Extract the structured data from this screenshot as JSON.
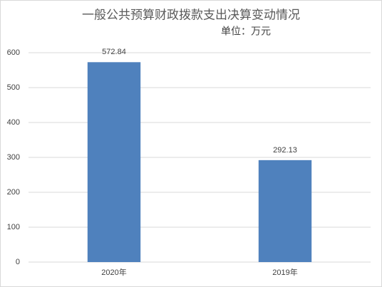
{
  "chart_data": {
    "type": "bar",
    "title": "一般公共预算财政拨款支出决算变动情况",
    "subtitle": "单位：万元",
    "categories": [
      "2020年",
      "2019年"
    ],
    "values": [
      572.84,
      292.13
    ],
    "color": "#4f81bd",
    "ylim": [
      0,
      600
    ],
    "yticks": [
      0,
      100,
      200,
      300,
      400,
      500,
      600
    ],
    "grid": true
  }
}
